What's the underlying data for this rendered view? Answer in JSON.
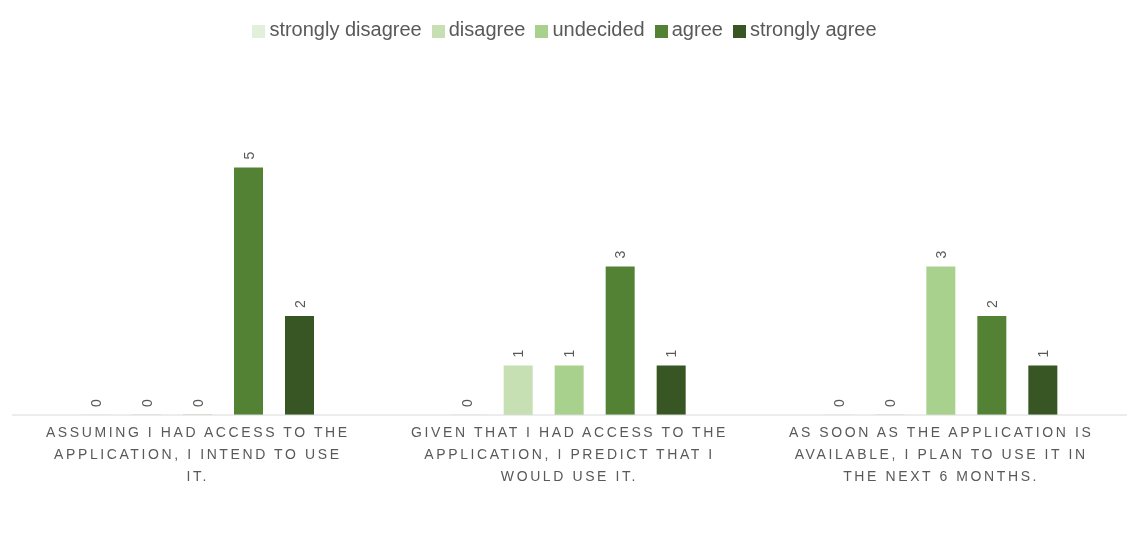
{
  "chart_data": {
    "type": "bar",
    "categories": [
      "ASSUMING I HAD ACCESS TO THE APPLICATION, I INTEND TO USE IT.",
      "GIVEN THAT I HAD ACCESS TO THE APPLICATION, I PREDICT THAT I WOULD USE IT.",
      "AS SOON AS THE APPLICATION IS AVAILABLE, I PLAN TO USE IT IN THE NEXT 6 MONTHS."
    ],
    "series": [
      {
        "name": "strongly disagree",
        "color": "#e2efda",
        "values": [
          0,
          0,
          0
        ]
      },
      {
        "name": "disagree",
        "color": "#c6e0b4",
        "values": [
          0,
          1,
          0
        ]
      },
      {
        "name": "undecided",
        "color": "#a9d18e",
        "values": [
          0,
          1,
          3
        ]
      },
      {
        "name": "agree",
        "color": "#548235",
        "values": [
          5,
          3,
          2
        ]
      },
      {
        "name": "strongly agree",
        "color": "#375623",
        "values": [
          2,
          1,
          1
        ]
      }
    ],
    "data_labels": true,
    "legend": "top"
  }
}
